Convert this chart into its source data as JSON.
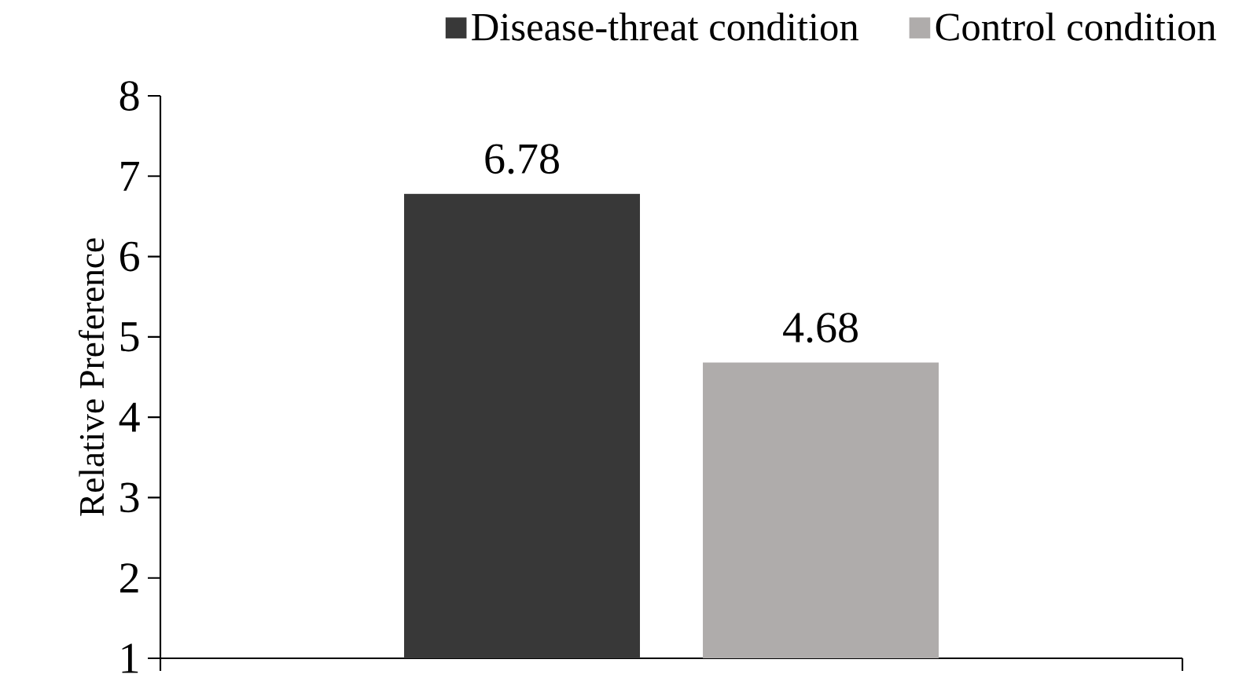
{
  "chart_data": {
    "type": "bar",
    "ylabel": "Relative Preference",
    "categories": [
      null
    ],
    "series": [
      {
        "name": "Disease-threat condition",
        "color": "#383838",
        "values": [
          6.78
        ]
      },
      {
        "name": "Control condition",
        "color": "#afacab",
        "values": [
          4.68
        ]
      }
    ],
    "ylim": [
      1,
      8
    ],
    "yticks": [
      1,
      2,
      3,
      4,
      5,
      6,
      7,
      8
    ],
    "data_labels": true,
    "legend": "top right",
    "grid": false
  }
}
